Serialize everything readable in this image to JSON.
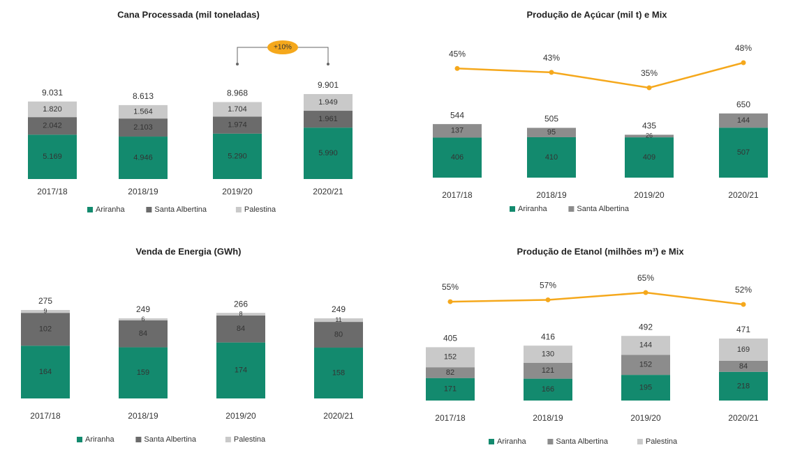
{
  "chart_data": [
    {
      "type": "bar",
      "title": "Cana Processada (mil toneladas)",
      "categories": [
        "2017/18",
        "2018/19",
        "2019/20",
        "2020/21"
      ],
      "series": [
        {
          "name": "Ariranha",
          "color": "#138a6e",
          "values": [
            5169,
            4946,
            5290,
            5990
          ],
          "value_labels": [
            "5.169",
            "4.946",
            "5.290",
            "5.990"
          ]
        },
        {
          "name": "Santa Albertina",
          "color": "#6b6b6b",
          "values": [
            2042,
            2103,
            1974,
            1961
          ],
          "value_labels": [
            "2.042",
            "2.103",
            "1.974",
            "1.961"
          ]
        },
        {
          "name": "Palestina",
          "color": "#c9c9c9",
          "values": [
            1820,
            1564,
            1704,
            1949
          ],
          "value_labels": [
            "1.820",
            "1.564",
            "1.704",
            "1.949"
          ]
        }
      ],
      "totals": [
        9031,
        8613,
        8968,
        9901
      ],
      "total_labels": [
        "9.031",
        "8.613",
        "8.968",
        "9.901"
      ],
      "annotation": "+10%",
      "annotation_color": "#f5a81c"
    },
    {
      "type": "bar",
      "title": "Produção de Açúcar (mil t) e Mix",
      "categories": [
        "2017/18",
        "2018/19",
        "2019/20",
        "2020/21"
      ],
      "series": [
        {
          "name": "Ariranha",
          "color": "#138a6e",
          "values": [
            406,
            410,
            409,
            507
          ]
        },
        {
          "name": "Santa Albertina",
          "color": "#8c8c8c",
          "values": [
            137,
            95,
            26,
            144
          ]
        }
      ],
      "totals": [
        544,
        505,
        435,
        650
      ],
      "mix": {
        "color": "#f5a81c",
        "values": [
          45,
          43,
          35,
          48
        ],
        "value_labels": [
          "45%",
          "43%",
          "35%",
          "48%"
        ]
      }
    },
    {
      "type": "bar",
      "title": "Venda de Energia (GWh)",
      "categories": [
        "2017/18",
        "2018/19",
        "2019/20",
        "2020/21"
      ],
      "series": [
        {
          "name": "Ariranha",
          "color": "#138a6e",
          "values": [
            164,
            159,
            174,
            158
          ]
        },
        {
          "name": "Santa Albertina",
          "color": "#6b6b6b",
          "values": [
            102,
            84,
            84,
            80
          ]
        },
        {
          "name": "Palestina",
          "color": "#c9c9c9",
          "values": [
            9,
            6,
            8,
            11
          ]
        }
      ],
      "totals": [
        275,
        249,
        266,
        249
      ]
    },
    {
      "type": "bar",
      "title": "Produção de Etanol (milhões m³) e Mix",
      "categories": [
        "2017/18",
        "2018/19",
        "2019/20",
        "2020/21"
      ],
      "series": [
        {
          "name": "Ariranha",
          "color": "#138a6e",
          "values": [
            171,
            166,
            195,
            218
          ]
        },
        {
          "name": "Santa Albertina",
          "color": "#8c8c8c",
          "values": [
            82,
            121,
            152,
            84
          ]
        },
        {
          "name": "Palestina",
          "color": "#c9c9c9",
          "values": [
            152,
            130,
            144,
            169
          ]
        }
      ],
      "totals": [
        405,
        416,
        492,
        471
      ],
      "mix": {
        "color": "#f5a81c",
        "values": [
          55,
          57,
          65,
          52
        ],
        "value_labels": [
          "55%",
          "57%",
          "65%",
          "52%"
        ]
      }
    }
  ]
}
